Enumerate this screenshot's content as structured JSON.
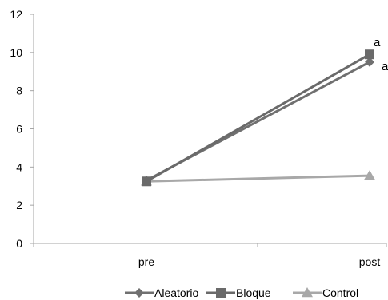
{
  "chart_data": {
    "type": "line",
    "categories": [
      "pre",
      "post"
    ],
    "ylim": [
      0,
      12
    ],
    "yticks": [
      0,
      2,
      4,
      6,
      8,
      10,
      12
    ],
    "grid": false,
    "legend_position": "bottom-right",
    "series": [
      {
        "name": "Aleatorio",
        "values": [
          3.3,
          9.5
        ],
        "color": "#707070",
        "marker": "diamond",
        "point_labels": [
          "",
          "a"
        ]
      },
      {
        "name": "Bloque",
        "values": [
          3.25,
          9.9
        ],
        "color": "#6a6a6a",
        "marker": "square",
        "point_labels": [
          "",
          "a"
        ]
      },
      {
        "name": "Control",
        "values": [
          3.25,
          3.55
        ],
        "color": "#a8a8a8",
        "marker": "triangle",
        "point_labels": [
          "",
          ""
        ]
      }
    ]
  }
}
